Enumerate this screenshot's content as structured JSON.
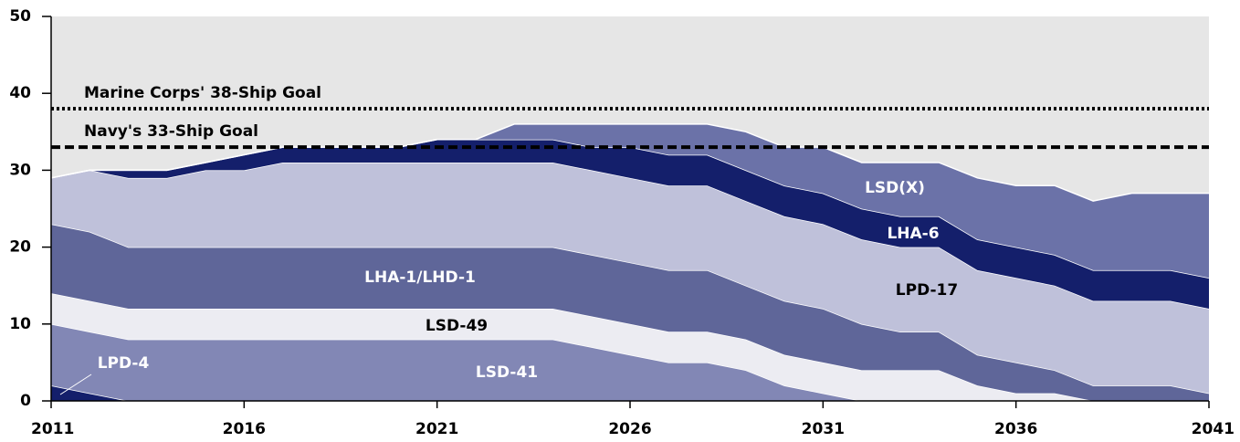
{
  "chart_data": {
    "type": "stacked_area",
    "x": [
      2011,
      2012,
      2013,
      2014,
      2015,
      2016,
      2017,
      2018,
      2019,
      2020,
      2021,
      2022,
      2023,
      2024,
      2025,
      2026,
      2027,
      2028,
      2029,
      2030,
      2031,
      2032,
      2033,
      2034,
      2035,
      2036,
      2037,
      2038,
      2039,
      2040,
      2041
    ],
    "series": [
      {
        "name": "LPD-4",
        "color": "#141f6b",
        "values": [
          2,
          1,
          0,
          0,
          0,
          0,
          0,
          0,
          0,
          0,
          0,
          0,
          0,
          0,
          0,
          0,
          0,
          0,
          0,
          0,
          0,
          0,
          0,
          0,
          0,
          0,
          0,
          0,
          0,
          0,
          0
        ]
      },
      {
        "name": "LSD-41",
        "color": "#8287b5",
        "values": [
          8,
          8,
          8,
          8,
          8,
          8,
          8,
          8,
          8,
          8,
          8,
          8,
          8,
          8,
          7,
          6,
          5,
          5,
          4,
          2,
          1,
          0,
          0,
          0,
          0,
          0,
          0,
          0,
          0,
          0,
          0
        ]
      },
      {
        "name": "LSD-49",
        "color": "#ececf2",
        "values": [
          4,
          4,
          4,
          4,
          4,
          4,
          4,
          4,
          4,
          4,
          4,
          4,
          4,
          4,
          4,
          4,
          4,
          4,
          4,
          4,
          4,
          4,
          4,
          4,
          2,
          1,
          1,
          0,
          0,
          0,
          0
        ]
      },
      {
        "name": "LHA-1/LHD-1",
        "color": "#5f6699",
        "values": [
          9,
          9,
          8,
          8,
          8,
          8,
          8,
          8,
          8,
          8,
          8,
          8,
          8,
          8,
          8,
          8,
          8,
          8,
          7,
          7,
          7,
          6,
          5,
          5,
          4,
          4,
          3,
          2,
          2,
          2,
          1
        ]
      },
      {
        "name": "LPD-17",
        "color": "#bfc1da",
        "values": [
          6,
          8,
          9,
          9,
          10,
          10,
          11,
          11,
          11,
          11,
          11,
          11,
          11,
          11,
          11,
          11,
          11,
          11,
          11,
          11,
          11,
          11,
          11,
          11,
          11,
          11,
          11,
          11,
          11,
          11,
          11
        ]
      },
      {
        "name": "LHA-6",
        "color": "#141f6b",
        "values": [
          0,
          0,
          1,
          1,
          1,
          2,
          2,
          2,
          2,
          2,
          3,
          3,
          3,
          3,
          3,
          4,
          4,
          4,
          4,
          4,
          4,
          4,
          4,
          4,
          4,
          4,
          4,
          4,
          4,
          4,
          4
        ]
      },
      {
        "name": "LSD(X)",
        "color": "#6b72a8",
        "values": [
          0,
          0,
          0,
          0,
          0,
          0,
          0,
          0,
          0,
          0,
          0,
          0,
          2,
          2,
          3,
          3,
          4,
          4,
          5,
          5,
          6,
          6,
          7,
          7,
          8,
          8,
          9,
          9,
          10,
          10,
          11
        ]
      }
    ],
    "reference_lines": [
      {
        "label": "Marine Corps' 38-Ship Goal",
        "value": 38,
        "style": "dotted"
      },
      {
        "label": "Navy's 33-Ship Goal",
        "value": 33,
        "style": "dashed"
      }
    ],
    "xlim": [
      2011,
      2041
    ],
    "xticks": [
      2011,
      2016,
      2021,
      2026,
      2031,
      2036,
      2041
    ],
    "ylim": [
      0,
      50
    ],
    "yticks": [
      0,
      10,
      20,
      30,
      40,
      50
    ]
  }
}
